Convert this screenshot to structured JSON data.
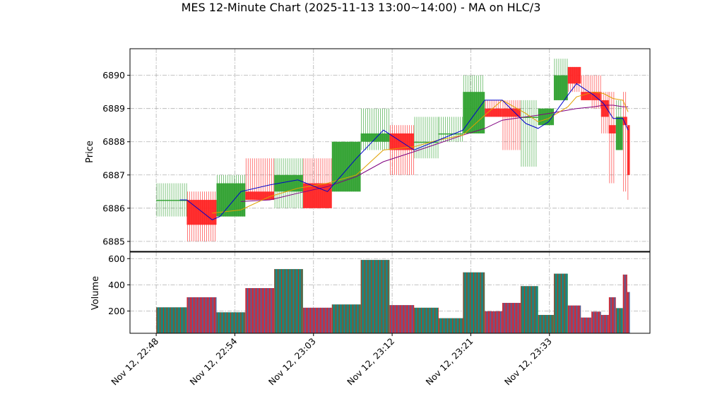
{
  "chart_data": {
    "type": "candlestick",
    "title": "MES 12-Minute Chart (2025-11-13 13:00~14:00) - MA on HLC/3",
    "ylabel_price": "Price",
    "ylabel_volume": "Volume",
    "xlabel": "",
    "ylim_price": [
      6884.7,
      6890.8
    ],
    "ylim_volume": [
      30,
      650
    ],
    "price_ticks": [
      "6885",
      "6886",
      "6887",
      "6888",
      "6889",
      "6890"
    ],
    "volume_ticks": [
      "200",
      "400",
      "600"
    ],
    "x_ticks": [
      "Nov 12, 22:48",
      "Nov 12, 22:54",
      "Nov 12, 23:03",
      "Nov 12, 23:12",
      "Nov 12, 23:21",
      "Nov 12, 23:33"
    ],
    "x_tick_positions": [
      0,
      9,
      18,
      27,
      36,
      45
    ],
    "x_range": [
      -3,
      56.5
    ],
    "grid": true,
    "colors": {
      "up": "#2ca02c",
      "down": "#ff2020",
      "ma_short": "#0000cc",
      "ma_mid": "#e0a000",
      "ma_long": "#800080",
      "volume_edge_a": "#1f77b4",
      "volume_edge_b": "#d62728"
    },
    "candles": [
      {
        "x0": 0.0,
        "x1": 3.5,
        "open": 6886.25,
        "high": 6886.75,
        "low": 6885.75,
        "close": 6886.25,
        "volume": 228
      },
      {
        "x0": 3.5,
        "x1": 6.9,
        "open": 6886.25,
        "high": 6886.5,
        "low": 6885.0,
        "close": 6885.5,
        "volume": 305
      },
      {
        "x0": 6.9,
        "x1": 10.2,
        "open": 6885.75,
        "high": 6887.0,
        "low": 6885.75,
        "close": 6886.75,
        "volume": 190
      },
      {
        "x0": 10.2,
        "x1": 13.5,
        "open": 6886.5,
        "high": 6887.5,
        "low": 6886.25,
        "close": 6886.25,
        "volume": 375
      },
      {
        "x0": 13.5,
        "x1": 16.8,
        "open": 6886.5,
        "high": 6887.5,
        "low": 6886.0,
        "close": 6887.0,
        "volume": 520
      },
      {
        "x0": 16.8,
        "x1": 20.1,
        "open": 6886.75,
        "high": 6887.5,
        "low": 6886.0,
        "close": 6886.0,
        "volume": 225
      },
      {
        "x0": 20.1,
        "x1": 23.4,
        "open": 6886.5,
        "high": 6888.0,
        "low": 6886.5,
        "close": 6888.0,
        "volume": 250
      },
      {
        "x0": 23.4,
        "x1": 26.7,
        "open": 6888.0,
        "high": 6889.0,
        "low": 6887.75,
        "close": 6888.25,
        "volume": 590
      },
      {
        "x0": 26.7,
        "x1": 29.5,
        "open": 6888.25,
        "high": 6888.5,
        "low": 6887.0,
        "close": 6887.75,
        "volume": 245
      },
      {
        "x0": 29.5,
        "x1": 32.3,
        "open": 6888.0,
        "high": 6888.75,
        "low": 6887.5,
        "close": 6888.0,
        "volume": 225
      },
      {
        "x0": 32.3,
        "x1": 35.1,
        "open": 6888.25,
        "high": 6888.75,
        "low": 6888.0,
        "close": 6888.25,
        "volume": 145
      },
      {
        "x0": 35.1,
        "x1": 37.6,
        "open": 6888.25,
        "high": 6890.0,
        "low": 6888.25,
        "close": 6889.5,
        "volume": 495
      },
      {
        "x0": 37.6,
        "x1": 39.6,
        "open": 6889.0,
        "high": 6889.25,
        "low": 6888.75,
        "close": 6888.75,
        "volume": 198
      },
      {
        "x0": 39.6,
        "x1": 41.7,
        "open": 6889.0,
        "high": 6889.25,
        "low": 6887.75,
        "close": 6888.75,
        "volume": 262
      },
      {
        "x0": 41.7,
        "x1": 43.7,
        "open": 6888.75,
        "high": 6889.25,
        "low": 6887.25,
        "close": 6888.75,
        "volume": 390
      },
      {
        "x0": 43.7,
        "x1": 45.5,
        "open": 6888.5,
        "high": 6889.0,
        "low": 6888.5,
        "close": 6889.0,
        "volume": 170
      },
      {
        "x0": 45.5,
        "x1": 47.1,
        "open": 6889.25,
        "high": 6890.5,
        "low": 6889.25,
        "close": 6890.0,
        "volume": 485
      },
      {
        "x0": 47.1,
        "x1": 48.6,
        "open": 6890.25,
        "high": 6890.25,
        "low": 6889.5,
        "close": 6889.75,
        "volume": 242
      },
      {
        "x0": 48.6,
        "x1": 49.8,
        "open": 6889.5,
        "high": 6890.0,
        "low": 6889.25,
        "close": 6889.25,
        "volume": 150
      },
      {
        "x0": 49.8,
        "x1": 50.9,
        "open": 6889.5,
        "high": 6890.0,
        "low": 6889.0,
        "close": 6889.25,
        "volume": 195
      },
      {
        "x0": 50.9,
        "x1": 51.8,
        "open": 6889.25,
        "high": 6889.5,
        "low": 6888.25,
        "close": 6888.75,
        "volume": 170
      },
      {
        "x0": 51.8,
        "x1": 52.6,
        "open": 6888.5,
        "high": 6889.5,
        "low": 6886.75,
        "close": 6888.25,
        "volume": 305
      },
      {
        "x0": 52.6,
        "x1": 53.4,
        "open": 6887.75,
        "high": 6889.25,
        "low": 6887.75,
        "close": 6888.75,
        "volume": 222
      },
      {
        "x0": 53.4,
        "x1": 53.9,
        "open": 6888.75,
        "high": 6889.5,
        "low": 6886.5,
        "close": 6888.5,
        "volume": 478
      },
      {
        "x0": 53.9,
        "x1": 54.2,
        "open": 6888.5,
        "high": 6888.5,
        "low": 6886.25,
        "close": 6887.0,
        "volume": 345
      }
    ],
    "ma_short": [
      [
        2.7,
        6886.25
      ],
      [
        3.5,
        6886.25
      ],
      [
        6.4,
        6885.65
      ],
      [
        7.3,
        6885.75
      ],
      [
        9.7,
        6886.5
      ],
      [
        13.0,
        6886.7
      ],
      [
        16.2,
        6886.85
      ],
      [
        19.6,
        6886.5
      ],
      [
        22.9,
        6887.5
      ],
      [
        26.0,
        6888.35
      ],
      [
        29.5,
        6887.75
      ],
      [
        32.3,
        6888.05
      ],
      [
        35.1,
        6888.35
      ],
      [
        37.6,
        6889.25
      ],
      [
        39.6,
        6889.25
      ],
      [
        42.3,
        6888.55
      ],
      [
        43.7,
        6888.4
      ],
      [
        44.9,
        6888.6
      ],
      [
        47.1,
        6889.4
      ],
      [
        48.1,
        6889.75
      ],
      [
        50.1,
        6889.4
      ],
      [
        51.2,
        6889.15
      ],
      [
        52.3,
        6888.7
      ],
      [
        53.4,
        6888.7
      ],
      [
        54.0,
        6888.35
      ]
    ],
    "ma_mid": [
      [
        6.4,
        6885.85
      ],
      [
        9.7,
        6885.95
      ],
      [
        13.0,
        6886.35
      ],
      [
        16.2,
        6886.6
      ],
      [
        19.6,
        6886.75
      ],
      [
        22.9,
        6887.0
      ],
      [
        26.0,
        6887.75
      ],
      [
        29.5,
        6887.85
      ],
      [
        32.3,
        6888.05
      ],
      [
        35.1,
        6888.2
      ],
      [
        37.6,
        6888.8
      ],
      [
        39.6,
        6889.25
      ],
      [
        42.3,
        6888.85
      ],
      [
        43.7,
        6888.6
      ],
      [
        44.9,
        6888.7
      ],
      [
        47.1,
        6889.05
      ],
      [
        48.1,
        6889.35
      ],
      [
        50.1,
        6889.5
      ],
      [
        51.2,
        6889.45
      ],
      [
        52.3,
        6889.3
      ],
      [
        53.4,
        6889.25
      ],
      [
        54.0,
        6888.9
      ]
    ],
    "ma_long": [
      [
        9.7,
        6886.2
      ],
      [
        13.0,
        6886.25
      ],
      [
        16.2,
        6886.45
      ],
      [
        19.6,
        6886.65
      ],
      [
        22.9,
        6886.95
      ],
      [
        26.0,
        6887.4
      ],
      [
        29.5,
        6887.7
      ],
      [
        32.3,
        6887.95
      ],
      [
        35.1,
        6888.2
      ],
      [
        37.6,
        6888.4
      ],
      [
        39.6,
        6888.65
      ],
      [
        42.3,
        6888.75
      ],
      [
        43.7,
        6888.8
      ],
      [
        44.9,
        6888.85
      ],
      [
        47.1,
        6888.95
      ],
      [
        48.1,
        6889.0
      ],
      [
        50.1,
        6889.05
      ],
      [
        51.2,
        6889.1
      ],
      [
        52.3,
        6889.1
      ],
      [
        53.4,
        6889.05
      ],
      [
        54.0,
        6889.05
      ]
    ]
  }
}
